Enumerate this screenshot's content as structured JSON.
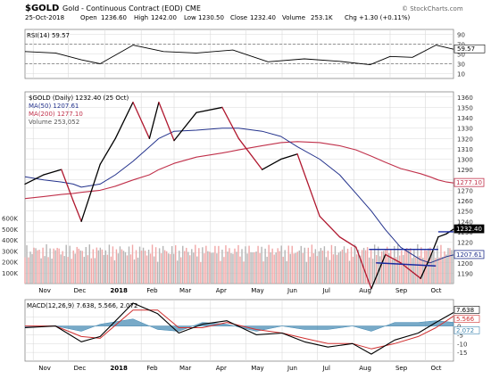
{
  "header": {
    "symbol": "$GOLD",
    "description": "Gold - Continuous Contract (EOD) CME",
    "watermark": "© StockCharts.com",
    "date": "25-Oct-2018",
    "open_label": "Open",
    "open": "1236.60",
    "high_label": "High",
    "high": "1242.00",
    "low_label": "Low",
    "low": "1230.50",
    "close_label": "Close",
    "close": "1232.40",
    "volume_label": "Volume",
    "volume": "253.1K",
    "chg_label": "Chg",
    "chg": "+1.30 (+0.11%)"
  },
  "colors": {
    "background": "#ffffff",
    "grid": "#d9d9d9",
    "price": "#000000",
    "price_down": "#b0182f",
    "ma50": "#23328c",
    "ma200": "#c0304a",
    "volume_up": "#b5b5b5",
    "volume_down": "#f1a7a7",
    "macd": "#000000",
    "signal": "#d03030",
    "histogram": "#3f86b0",
    "resistance": "#1a2aa0"
  },
  "chart_data": [
    {
      "type": "line",
      "panel": "RSI",
      "legend": "RSI(14) 59.57",
      "ylim": [
        0,
        100
      ],
      "yticks": [
        10,
        30,
        50,
        70,
        90
      ],
      "reference_lines": [
        30,
        70
      ],
      "last_value_label": "59.57",
      "x_start": "2018-10-25",
      "x": [
        "2017-10-25",
        "2017-11-20",
        "2017-12-12",
        "2017-12-28",
        "2018-01-25",
        "2018-02-20",
        "2018-03-20",
        "2018-04-20",
        "2018-05-20",
        "2018-06-20",
        "2018-07-20",
        "2018-08-15",
        "2018-09-01",
        "2018-09-20",
        "2018-10-10",
        "2018-10-25"
      ],
      "series": [
        {
          "name": "RSI(14)",
          "values": [
            55,
            52,
            38,
            30,
            68,
            55,
            52,
            58,
            34,
            40,
            35,
            28,
            45,
            43,
            68,
            59.57
          ]
        }
      ]
    },
    {
      "type": "line",
      "panel": "Price",
      "legend": [
        "$GOLD (Daily) 1232.40 (25 Oct)",
        "MA(50) 1207.61",
        "MA(200) 1277.10",
        "Volume 253,052"
      ],
      "ylim": [
        1180,
        1365
      ],
      "yticks": [
        1190,
        1200,
        1210,
        1220,
        1230,
        1240,
        1250,
        1260,
        1270,
        1280,
        1290,
        1300,
        1310,
        1320,
        1330,
        1340,
        1350,
        1360
      ],
      "x_tick_labels": [
        "Nov",
        "Dec",
        "2018",
        "Feb",
        "Mar",
        "Apr",
        "May",
        "Jun",
        "Jul",
        "Aug",
        "Sep",
        "Oct"
      ],
      "price_labels": [
        "1277.10",
        "1232.40",
        "1207.61"
      ],
      "volume_axis": {
        "ylim": [
          0,
          600000
        ],
        "tick_labels": [
          "100K",
          "200K",
          "300K",
          "400K",
          "500K",
          "600K"
        ]
      },
      "x": [
        "2017-10-25",
        "2017-11-10",
        "2017-11-25",
        "2017-12-05",
        "2017-12-12",
        "2017-12-28",
        "2018-01-10",
        "2018-01-25",
        "2018-02-08",
        "2018-02-16",
        "2018-03-01",
        "2018-03-20",
        "2018-04-11",
        "2018-04-25",
        "2018-05-15",
        "2018-05-31",
        "2018-06-14",
        "2018-07-03",
        "2018-07-20",
        "2018-08-03",
        "2018-08-16",
        "2018-08-28",
        "2018-09-10",
        "2018-09-27",
        "2018-10-05",
        "2018-10-12",
        "2018-10-19",
        "2018-10-25"
      ],
      "series": [
        {
          "name": "$GOLD (Daily)",
          "values": [
            1276,
            1285,
            1290,
            1260,
            1240,
            1295,
            1320,
            1355,
            1320,
            1355,
            1318,
            1345,
            1350,
            1320,
            1290,
            1300,
            1305,
            1245,
            1225,
            1215,
            1175,
            1208,
            1200,
            1185,
            1205,
            1225,
            1228,
            1232.4
          ]
        },
        {
          "name": "MA(50)",
          "values": [
            1283,
            1280,
            1278,
            1276,
            1273,
            1276,
            1285,
            1298,
            1312,
            1320,
            1327,
            1328,
            1330,
            1330,
            1327,
            1322,
            1312,
            1300,
            1285,
            1267,
            1250,
            1232,
            1215,
            1203,
            1200,
            1203,
            1206,
            1207.61
          ]
        },
        {
          "name": "MA(200)",
          "values": [
            1262,
            1264,
            1266,
            1267,
            1268,
            1270,
            1274,
            1280,
            1285,
            1290,
            1296,
            1302,
            1306,
            1309,
            1313,
            1316,
            1317,
            1316,
            1313,
            1309,
            1303,
            1297,
            1291,
            1286,
            1283,
            1280,
            1278,
            1277.1
          ]
        }
      ],
      "annotation_lines": [
        {
          "label": "resistance",
          "from": [
            "2018-08-14",
            1213
          ],
          "to": [
            "2018-10-12",
            1213
          ]
        },
        {
          "label": "resistance",
          "from": [
            "2018-10-12",
            1230
          ],
          "to": [
            "2018-10-25",
            1230
          ]
        },
        {
          "label": "support",
          "from": [
            "2018-08-20",
            1200
          ],
          "to": [
            "2018-10-10",
            1197
          ]
        }
      ]
    },
    {
      "type": "line",
      "panel": "MACD",
      "legend": "MACD(12,26,9) 7.638, 5.566, 2.072",
      "ylim": [
        -20,
        15
      ],
      "yticks": [
        -15,
        -10,
        -5,
        0,
        5,
        10
      ],
      "value_labels": [
        "7.638",
        "5.566",
        "2.072"
      ],
      "x": [
        "2017-10-25",
        "2017-11-20",
        "2017-12-12",
        "2017-12-28",
        "2018-01-25",
        "2018-02-15",
        "2018-03-05",
        "2018-03-25",
        "2018-04-15",
        "2018-05-10",
        "2018-06-01",
        "2018-06-20",
        "2018-07-10",
        "2018-07-31",
        "2018-08-16",
        "2018-09-05",
        "2018-09-25",
        "2018-10-10",
        "2018-10-25"
      ],
      "series": [
        {
          "name": "MACD",
          "values": [
            -1,
            0,
            -9,
            -6,
            13,
            7,
            -4,
            1,
            3,
            -5,
            -4,
            -9,
            -12,
            -10,
            -16,
            -8,
            -4,
            2,
            7.638
          ]
        },
        {
          "name": "Signal",
          "values": [
            0,
            0,
            -6,
            -7,
            9,
            9,
            -1,
            -1,
            2,
            -2,
            -4,
            -7,
            -10,
            -10,
            -13,
            -10,
            -6,
            -1,
            5.566
          ]
        },
        {
          "name": "Histogram",
          "values": [
            -1,
            0,
            -3,
            1,
            4,
            -2,
            -3,
            2,
            1,
            -3,
            0,
            -2,
            -2,
            0,
            -3,
            2,
            2,
            3,
            2.072
          ]
        }
      ]
    }
  ]
}
